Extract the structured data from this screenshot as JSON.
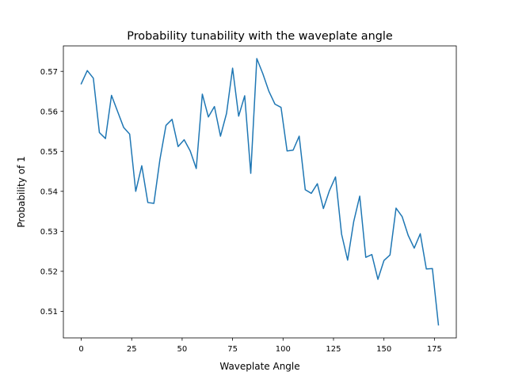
{
  "chart_data": {
    "type": "line",
    "title": "Probability tunability with the waveplate angle",
    "xlabel": "Waveplate Angle",
    "ylabel": "Probability of 1",
    "xlim": [
      -8.85,
      185.85
    ],
    "ylim": [
      0.50335,
      0.57637
    ],
    "xticks": [
      0,
      25,
      50,
      75,
      100,
      125,
      150,
      175
    ],
    "yticks": [
      0.51,
      0.52,
      0.53,
      0.54,
      0.55,
      0.56,
      0.57
    ],
    "ytick_labels": [
      "0.51",
      "0.52",
      "0.53",
      "0.54",
      "0.55",
      "0.56",
      "0.57"
    ],
    "grid": false,
    "legend": "none",
    "line_color": "#1f77b4",
    "series": [
      {
        "x": [
          0,
          3,
          6,
          9,
          12,
          15,
          18,
          21,
          24,
          27,
          30,
          33,
          36,
          39,
          42,
          45,
          48,
          51,
          54,
          57,
          60,
          63,
          66,
          69,
          72,
          75,
          78,
          81,
          84,
          87,
          90,
          93,
          96,
          99,
          102,
          105,
          108,
          111,
          114,
          117,
          120,
          123,
          126,
          129,
          132,
          135,
          138,
          141,
          144,
          147,
          150,
          153,
          156,
          159,
          162,
          165,
          168,
          171,
          174,
          177
        ],
        "values": [
          0.5669,
          0.5702,
          0.5683,
          0.5547,
          0.5532,
          0.564,
          0.56,
          0.556,
          0.5543,
          0.54,
          0.5464,
          0.5372,
          0.537,
          0.548,
          0.5565,
          0.558,
          0.5512,
          0.5529,
          0.5501,
          0.5457,
          0.5643,
          0.5586,
          0.5612,
          0.5538,
          0.5595,
          0.5708,
          0.5588,
          0.5639,
          0.5445,
          0.5732,
          0.5694,
          0.565,
          0.5618,
          0.561,
          0.5501,
          0.5503,
          0.5538,
          0.5404,
          0.5395,
          0.5419,
          0.5357,
          0.5402,
          0.5436,
          0.5293,
          0.5228,
          0.5324,
          0.5388,
          0.5235,
          0.5242,
          0.518,
          0.5227,
          0.5241,
          0.5358,
          0.5337,
          0.529,
          0.5258,
          0.5294,
          0.5206,
          0.5207,
          0.5066
        ]
      }
    ]
  }
}
